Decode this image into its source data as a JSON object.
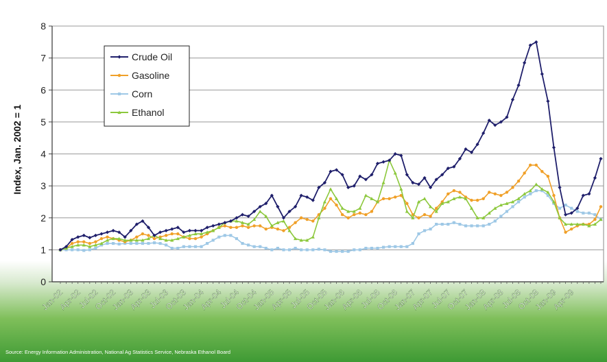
{
  "chart_data": {
    "type": "line",
    "ylabel": "Index, Jan. 2002 = 1",
    "xlabel": "",
    "ylim": [
      0,
      8
    ],
    "yticks": [
      0,
      1,
      2,
      3,
      4,
      5,
      6,
      7,
      8
    ],
    "grid": "horizontal",
    "legend_position": "top-left",
    "x_tick_labels": [
      "Jan-02",
      "Apr-02",
      "Jul-02",
      "Oct-02",
      "Jan-03",
      "Apr-03",
      "Jul-03",
      "Oct-03",
      "Jan-04",
      "Apr-04",
      "Jul-04",
      "Oct-04",
      "Jan-05",
      "Apr-05",
      "Jul-05",
      "Oct-05",
      "Jan-06",
      "Apr-06",
      "Jul-06",
      "Oct-06",
      "Jan-07",
      "Apr-07",
      "Jul-07",
      "Oct-07",
      "Jan-08",
      "Apr-08",
      "Jul-08",
      "Oct-08",
      "Jan-09",
      "Apr-09"
    ],
    "series": [
      {
        "name": "Crude Oil",
        "color": "#1f1f6b",
        "marker": "diamond",
        "values": [
          1.0,
          1.1,
          1.32,
          1.4,
          1.45,
          1.38,
          1.45,
          1.5,
          1.55,
          1.6,
          1.55,
          1.4,
          1.6,
          1.8,
          1.9,
          1.7,
          1.45,
          1.55,
          1.6,
          1.65,
          1.7,
          1.55,
          1.6,
          1.6,
          1.6,
          1.7,
          1.75,
          1.8,
          1.85,
          1.9,
          2.0,
          2.1,
          2.05,
          2.2,
          2.35,
          2.45,
          2.7,
          2.35,
          2.0,
          2.2,
          2.35,
          2.7,
          2.65,
          2.55,
          2.95,
          3.1,
          3.45,
          3.5,
          3.35,
          2.95,
          3.0,
          3.3,
          3.2,
          3.35,
          3.7,
          3.75,
          3.8,
          4.0,
          3.95,
          3.35,
          3.1,
          3.05,
          3.25,
          2.95,
          3.2,
          3.35,
          3.55,
          3.6,
          3.85,
          4.15,
          4.05,
          4.3,
          4.65,
          5.05,
          4.9,
          5.0,
          5.15,
          5.7,
          6.15,
          6.85,
          7.4,
          7.5,
          6.5,
          5.65,
          4.2,
          2.95,
          2.1,
          2.15,
          2.3,
          2.7,
          2.75,
          3.25,
          3.85
        ]
      },
      {
        "name": "Gasoline",
        "color": "#f0a028",
        "marker": "circle",
        "values": [
          1.0,
          1.05,
          1.2,
          1.25,
          1.25,
          1.2,
          1.25,
          1.35,
          1.4,
          1.35,
          1.3,
          1.25,
          1.3,
          1.4,
          1.5,
          1.45,
          1.35,
          1.4,
          1.45,
          1.5,
          1.5,
          1.4,
          1.35,
          1.35,
          1.4,
          1.5,
          1.6,
          1.7,
          1.75,
          1.7,
          1.7,
          1.75,
          1.7,
          1.75,
          1.75,
          1.65,
          1.7,
          1.65,
          1.6,
          1.7,
          1.85,
          2.0,
          1.95,
          1.9,
          2.1,
          2.3,
          2.6,
          2.4,
          2.1,
          2.0,
          2.1,
          2.15,
          2.1,
          2.2,
          2.5,
          2.6,
          2.6,
          2.65,
          2.7,
          2.45,
          2.1,
          2.0,
          2.1,
          2.05,
          2.3,
          2.5,
          2.75,
          2.85,
          2.8,
          2.65,
          2.55,
          2.55,
          2.6,
          2.8,
          2.75,
          2.7,
          2.8,
          2.95,
          3.15,
          3.4,
          3.65,
          3.65,
          3.45,
          3.3,
          2.7,
          2.0,
          1.55,
          1.65,
          1.75,
          1.8,
          1.8,
          1.95,
          2.35
        ]
      },
      {
        "name": "Corn",
        "color": "#9ec8e6",
        "marker": "square",
        "values": [
          1.0,
          1.0,
          1.0,
          1.0,
          0.98,
          1.0,
          1.05,
          1.15,
          1.2,
          1.2,
          1.18,
          1.2,
          1.2,
          1.2,
          1.2,
          1.2,
          1.22,
          1.2,
          1.15,
          1.05,
          1.05,
          1.1,
          1.1,
          1.1,
          1.1,
          1.2,
          1.3,
          1.4,
          1.45,
          1.45,
          1.35,
          1.2,
          1.15,
          1.1,
          1.1,
          1.05,
          1.0,
          1.05,
          1.0,
          1.0,
          1.05,
          1.0,
          1.0,
          1.0,
          1.02,
          1.0,
          0.95,
          0.95,
          0.95,
          0.95,
          1.0,
          1.0,
          1.05,
          1.05,
          1.05,
          1.08,
          1.1,
          1.1,
          1.1,
          1.1,
          1.2,
          1.5,
          1.6,
          1.65,
          1.8,
          1.8,
          1.8,
          1.85,
          1.8,
          1.75,
          1.75,
          1.75,
          1.75,
          1.8,
          1.9,
          2.05,
          2.2,
          2.35,
          2.5,
          2.65,
          2.75,
          2.85,
          2.85,
          2.7,
          2.45,
          2.3,
          2.4,
          2.3,
          2.2,
          2.15,
          2.15,
          2.1,
          1.95
        ]
      },
      {
        "name": "Ethanol",
        "color": "#8cc83c",
        "marker": "triangle",
        "values": [
          1.0,
          1.05,
          1.1,
          1.15,
          1.15,
          1.1,
          1.15,
          1.2,
          1.3,
          1.35,
          1.35,
          1.3,
          1.3,
          1.3,
          1.3,
          1.35,
          1.45,
          1.35,
          1.3,
          1.3,
          1.35,
          1.4,
          1.45,
          1.5,
          1.5,
          1.55,
          1.6,
          1.7,
          1.85,
          1.9,
          1.9,
          1.85,
          1.8,
          1.95,
          2.2,
          2.05,
          1.75,
          1.85,
          1.9,
          1.6,
          1.35,
          1.3,
          1.3,
          1.4,
          2.0,
          2.5,
          2.9,
          2.6,
          2.3,
          2.2,
          2.2,
          2.3,
          2.7,
          2.6,
          2.5,
          3.1,
          3.8,
          3.4,
          2.9,
          2.2,
          2.0,
          2.5,
          2.6,
          2.35,
          2.2,
          2.45,
          2.5,
          2.6,
          2.65,
          2.6,
          2.3,
          2.0,
          2.0,
          2.15,
          2.3,
          2.4,
          2.45,
          2.5,
          2.6,
          2.75,
          2.85,
          3.05,
          2.9,
          2.8,
          2.5,
          2.0,
          1.8,
          1.8,
          1.8,
          1.8,
          1.75,
          1.8,
          1.95
        ]
      }
    ]
  },
  "source": "Source: Energy Information Administration, National Ag Statistics Service, Nebraska Ethanol Board"
}
